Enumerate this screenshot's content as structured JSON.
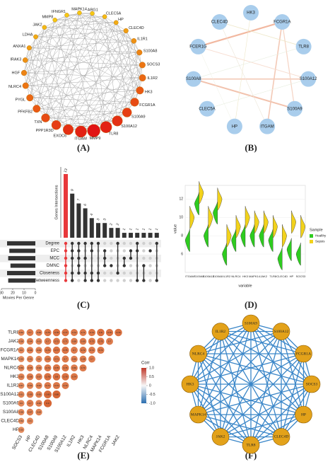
{
  "panel_a": {
    "label": "(A)",
    "nodes": [
      "ARG1",
      "CLEC5A",
      "HP",
      "CLEC4D",
      "IL1R1",
      "S100A8",
      "SOCS3",
      "IL1R2",
      "HK3",
      "FCGR1A",
      "S100A9",
      "S100A12",
      "TLR8",
      "MMP9",
      "ITGAM",
      "EXOC6",
      "PPP1R3D",
      "TXN",
      "PFKFB2",
      "PYGL",
      "NLRC4",
      "HGF",
      "IRAK3",
      "ANXA1",
      "LDHA",
      "JAK2",
      "MMP8",
      "IFNGR1",
      "MAPK14"
    ]
  },
  "panel_b": {
    "label": "(B)",
    "nodes": [
      "HK3",
      "FCGR1A",
      "TLR8",
      "S100A12",
      "S100A9",
      "ITGAM",
      "HP",
      "CLEC5A",
      "S100A8",
      "FCER1G",
      "CLEC4D"
    ]
  },
  "panel_c": {
    "label": "(C)",
    "y_label": "Genes Intersections",
    "x_label": "Movies Per Genre",
    "intersection_sizes": [
      13,
      9,
      7,
      6,
      4,
      3,
      3,
      2,
      2,
      1,
      1,
      1,
      1,
      1,
      1
    ],
    "intersection_sets": [
      [
        0,
        1,
        2,
        3,
        4,
        5
      ],
      [
        0,
        1,
        2,
        4,
        5
      ],
      [
        0,
        1,
        2,
        3,
        4
      ],
      [
        0,
        2,
        4,
        5
      ],
      [
        0,
        1,
        4,
        5
      ],
      [
        0,
        4,
        5
      ],
      [
        1,
        2,
        3
      ],
      [
        3
      ],
      [
        0,
        4
      ],
      [
        2,
        3
      ],
      [
        1,
        2
      ],
      [
        0,
        1,
        5
      ],
      [
        3,
        5
      ],
      [
        1
      ],
      [
        0,
        5
      ]
    ],
    "sets": [
      "Degree",
      "EPC",
      "MCC",
      "DMNC",
      "Closeness",
      "Betweenness"
    ],
    "set_sizes": [
      25,
      23,
      24,
      22,
      25,
      24
    ],
    "set_xlim": [
      30,
      0
    ],
    "set_xticks": [
      30,
      20,
      10,
      0
    ]
  },
  "panel_d": {
    "label": "(D)",
    "x_label": "variable",
    "y_label": "value",
    "legend_title": "Sample",
    "categories": [
      "ITGAM",
      "S100A9",
      "S100A12",
      "S100A8",
      "IL1R2",
      "NLRC4",
      "HK3",
      "MAPK14",
      "JAK2",
      "TLR8",
      "CLEC4D",
      "HP",
      "SOCS3"
    ],
    "series": [
      {
        "name": "Healthy",
        "color": "#2ecc1f",
        "values": [
          7.5,
          11.5,
          8,
          10.5,
          6,
          7.5,
          8,
          8,
          8,
          7.5,
          5.5,
          6.5,
          6
        ]
      },
      {
        "name": "Sepsis",
        "color": "#f2d21b",
        "values": [
          10,
          12.7,
          10,
          12,
          8,
          9,
          10,
          9.5,
          9.5,
          9,
          8,
          9.5,
          9
        ]
      }
    ],
    "ylim": [
      4,
      13.5
    ],
    "yticks": [
      6,
      8,
      10,
      12
    ]
  },
  "panel_e": {
    "label": "(E)",
    "legend_title": "Corr",
    "rows": [
      "TLR8",
      "JAK2",
      "FCGR1A",
      "MAPK14",
      "NLRC4",
      "HK3",
      "IL1R2",
      "S100A12",
      "S100A9",
      "S100A8",
      "CLEC4D",
      "HP"
    ],
    "columns": [
      "SOCS3",
      "HP",
      "CLEC4D",
      "S100A8",
      "S100A9",
      "S100A12",
      "IL1R2",
      "HK3",
      "NLRC4",
      "MAPK14",
      "FCGR1A",
      "JAK2"
    ],
    "values": [
      [
        0.62,
        0.7,
        0.66,
        0.75,
        0.78,
        0.77,
        0.72,
        0.71,
        0.74,
        0.8,
        0.76,
        0.79
      ],
      [
        0.58,
        0.64,
        0.61,
        0.7,
        0.72,
        0.71,
        0.68,
        0.69,
        0.73,
        0.75,
        0.7
      ],
      [
        0.6,
        0.66,
        0.63,
        0.74,
        0.77,
        0.76,
        0.7,
        0.72,
        0.71,
        0.73
      ],
      [
        0.55,
        0.61,
        0.6,
        0.69,
        0.71,
        0.7,
        0.66,
        0.68,
        0.7
      ],
      [
        0.59,
        0.65,
        0.62,
        0.72,
        0.75,
        0.74,
        0.69,
        0.73
      ],
      [
        0.63,
        0.68,
        0.67,
        0.78,
        0.8,
        0.79,
        0.74
      ],
      [
        0.57,
        0.63,
        0.64,
        0.71,
        0.73,
        0.72
      ],
      [
        0.61,
        0.69,
        0.65,
        0.85,
        0.88
      ],
      [
        0.6,
        0.7,
        0.66,
        0.9
      ],
      [
        0.58,
        0.67,
        0.64
      ],
      [
        0.52,
        0.6
      ],
      [
        0.55
      ]
    ],
    "legend_ticks": [
      {
        "value": 1.0,
        "label": "1.0"
      },
      0.5,
      0,
      -0.5,
      {
        "value": -1.0,
        "label": "-1.0"
      }
    ]
  },
  "panel_f": {
    "label": "(F)",
    "nodes": [
      "S100A9",
      "S100A12",
      "FCGR1A",
      "SOCS3",
      "HP",
      "CLEC4D",
      "TLR8",
      "JAK2",
      "MAPK14",
      "HK3",
      "NLRC4",
      "IL1R2"
    ]
  }
}
